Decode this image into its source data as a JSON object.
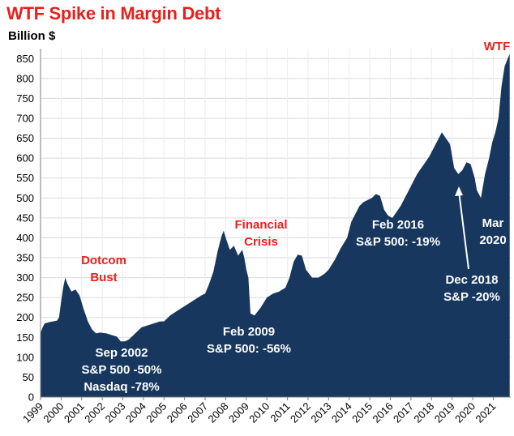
{
  "chart_data": {
    "type": "area",
    "title": "WTF Spike in Margin Debt",
    "unit_label": "Billion $",
    "ylim": [
      0,
      875
    ],
    "y_ticks": [
      0,
      50,
      100,
      150,
      200,
      250,
      300,
      350,
      400,
      450,
      500,
      550,
      600,
      650,
      700,
      750,
      800,
      850
    ],
    "x_range": [
      1999,
      2021.85
    ],
    "x_ticks": [
      "1999",
      "2000",
      "2001",
      "2002",
      "2003",
      "2004",
      "2005",
      "2006",
      "2007",
      "2008",
      "2009",
      "2010",
      "2011",
      "2012",
      "2013",
      "2014",
      "2015",
      "2016",
      "2017",
      "2018",
      "2019",
      "2020",
      "2021"
    ],
    "grid": true,
    "color": "#17375e",
    "x": [
      1999.0,
      1999.1,
      1999.2,
      1999.4,
      1999.6,
      1999.8,
      1999.9,
      2000.0,
      2000.1,
      2000.2,
      2000.3,
      2000.5,
      2000.7,
      2000.9,
      2001.1,
      2001.3,
      2001.5,
      2001.7,
      2001.9,
      2002.2,
      2002.5,
      2002.7,
      2002.9,
      2003.1,
      2003.3,
      2003.6,
      2003.9,
      2004.2,
      2004.5,
      2004.8,
      2005.0,
      2005.3,
      2005.6,
      2005.9,
      2006.2,
      2006.5,
      2006.8,
      2007.0,
      2007.2,
      2007.4,
      2007.5,
      2007.6,
      2007.7,
      2007.8,
      2007.9,
      2008.0,
      2008.2,
      2008.4,
      2008.6,
      2008.8,
      2008.9,
      2009.0,
      2009.1,
      2009.2,
      2009.4,
      2009.7,
      2010.0,
      2010.3,
      2010.6,
      2010.9,
      2011.1,
      2011.3,
      2011.5,
      2011.7,
      2011.9,
      2012.2,
      2012.5,
      2012.8,
      2013.0,
      2013.3,
      2013.6,
      2013.9,
      2014.1,
      2014.3,
      2014.5,
      2014.7,
      2014.9,
      2015.1,
      2015.3,
      2015.5,
      2015.7,
      2015.9,
      2016.1,
      2016.3,
      2016.5,
      2016.7,
      2016.9,
      2017.1,
      2017.3,
      2017.5,
      2017.7,
      2017.9,
      2018.1,
      2018.3,
      2018.5,
      2018.7,
      2018.9,
      2019.1,
      2019.3,
      2019.5,
      2019.7,
      2019.9,
      2020.1,
      2020.2,
      2020.4,
      2020.6,
      2020.8,
      2020.95,
      2021.1,
      2021.25,
      2021.4,
      2021.55,
      2021.7,
      2021.8
    ],
    "values": [
      160,
      175,
      185,
      188,
      190,
      192,
      200,
      240,
      275,
      300,
      285,
      265,
      270,
      255,
      220,
      190,
      170,
      160,
      162,
      160,
      155,
      152,
      140,
      140,
      145,
      160,
      175,
      180,
      185,
      190,
      190,
      205,
      215,
      225,
      235,
      245,
      255,
      260,
      285,
      315,
      340,
      365,
      385,
      405,
      418,
      400,
      370,
      380,
      355,
      370,
      350,
      320,
      300,
      210,
      205,
      225,
      250,
      260,
      265,
      275,
      300,
      340,
      358,
      355,
      320,
      300,
      300,
      310,
      320,
      345,
      375,
      400,
      440,
      460,
      480,
      490,
      495,
      500,
      510,
      505,
      470,
      455,
      450,
      465,
      480,
      500,
      520,
      540,
      560,
      575,
      590,
      605,
      625,
      645,
      665,
      650,
      635,
      575,
      560,
      570,
      590,
      585,
      550,
      520,
      500,
      560,
      600,
      640,
      665,
      700,
      780,
      830,
      850,
      862
    ],
    "annotations": [
      {
        "lines": [
          "Dotcom",
          "Bust"
        ],
        "color": "#e8201c"
      },
      {
        "lines": [
          "Financial",
          "Crisis"
        ],
        "color": "#e8201c"
      },
      {
        "lines": [
          "Sep 2002",
          "S&P 500 -50%",
          "Nasdaq -78%"
        ],
        "color": "#ffffff"
      },
      {
        "lines": [
          "Feb 2009",
          "S&P 500: -56%"
        ],
        "color": "#ffffff"
      },
      {
        "lines": [
          "Feb 2016",
          "S&P 500: -19%"
        ],
        "color": "#ffffff"
      },
      {
        "lines": [
          "Dec 2018",
          "S&P -20%"
        ],
        "color": "#ffffff"
      },
      {
        "lines": [
          "Mar",
          "2020"
        ],
        "color": "#ffffff"
      },
      {
        "lines": [
          "WTF"
        ],
        "color": "#e8201c"
      }
    ]
  }
}
